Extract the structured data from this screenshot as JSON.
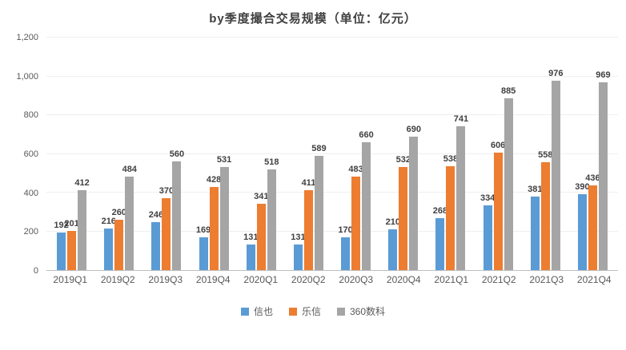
{
  "title": "by季度撮合交易规模（单位：亿元）",
  "chart_data": {
    "type": "bar",
    "title": "by季度撮合交易规模（单位：亿元）",
    "categories": [
      "2019Q1",
      "2019Q2",
      "2019Q3",
      "2019Q4",
      "2020Q1",
      "2020Q2",
      "2020Q3",
      "2020Q4",
      "2021Q1",
      "2021Q2",
      "2021Q3",
      "2021Q4"
    ],
    "series": [
      {
        "name": "信也",
        "color": "#5B9BD5",
        "values": [
          192,
          216,
          246,
          169,
          131,
          131,
          170,
          210,
          268,
          334,
          381,
          390
        ]
      },
      {
        "name": "乐信",
        "color": "#ED7D31",
        "values": [
          201,
          260,
          370,
          428,
          341,
          411,
          483,
          532,
          538,
          606,
          558,
          436
        ]
      },
      {
        "name": "360数科",
        "color": "#A5A5A5",
        "values": [
          412,
          484,
          560,
          531,
          518,
          589,
          660,
          690,
          741,
          885,
          976,
          969
        ]
      }
    ],
    "xlabel": "",
    "ylabel": "",
    "ylim": [
      0,
      1200
    ],
    "yticks": [
      0,
      200,
      400,
      600,
      800,
      1000,
      1200
    ],
    "grid": true,
    "legend_position": "bottom",
    "data_labels": true
  }
}
